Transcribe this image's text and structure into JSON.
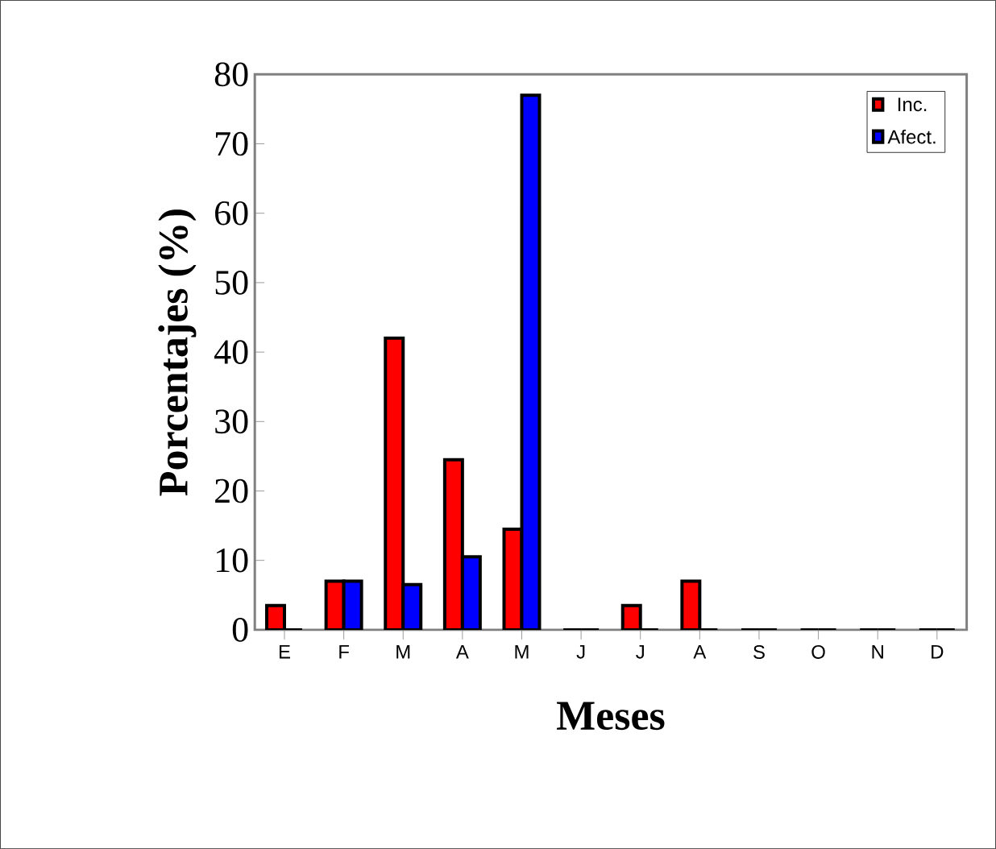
{
  "chart_data": {
    "type": "bar",
    "xlabel": "Meses",
    "ylabel": "Porcentajes (%)",
    "categories": [
      "E",
      "F",
      "M",
      "A",
      "M",
      "J",
      "J",
      "A",
      "S",
      "O",
      "N",
      "D"
    ],
    "series": [
      {
        "name": "Inc.",
        "color": "#ff0000",
        "values": [
          3.5,
          7,
          42,
          24.5,
          14.5,
          0,
          3.5,
          7,
          0,
          0,
          0,
          0
        ]
      },
      {
        "name": "Afect.",
        "color": "#0000ff",
        "values": [
          0,
          7,
          6.5,
          10.5,
          77,
          0,
          0,
          0,
          0,
          0,
          0,
          0
        ]
      }
    ],
    "ylim": [
      0,
      80
    ],
    "yticks": [
      0,
      10,
      20,
      30,
      40,
      50,
      60,
      70,
      80
    ],
    "grid": false,
    "legend": "top right"
  }
}
